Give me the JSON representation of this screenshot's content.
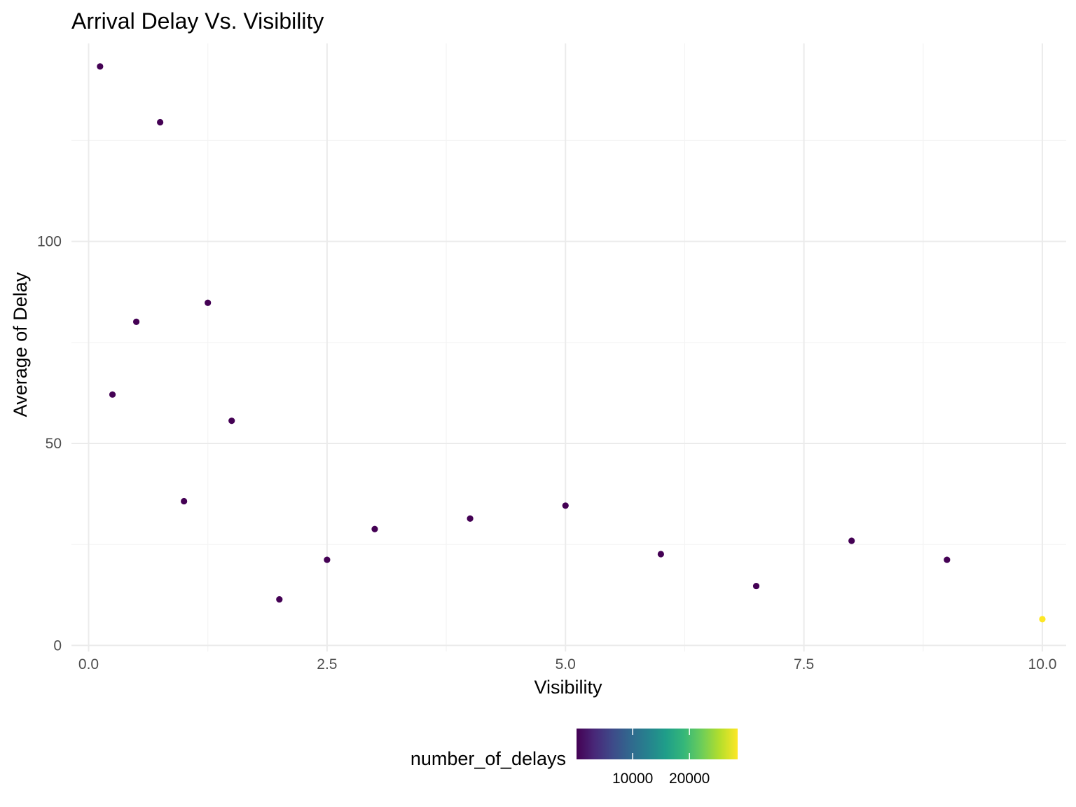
{
  "chart_data": {
    "type": "scatter",
    "title": "Arrival Delay Vs. Visibility",
    "xlabel": "Visibility",
    "ylabel": "Average of Delay",
    "xlim": [
      -0.18,
      10.25
    ],
    "ylim": [
      -1.5,
      149
    ],
    "x_ticks": [
      0.0,
      2.5,
      5.0,
      7.5,
      10.0
    ],
    "x_tick_labels": [
      "0.0",
      "2.5",
      "5.0",
      "7.5",
      "10.0"
    ],
    "y_ticks": [
      0,
      50,
      100
    ],
    "y_tick_labels": [
      "0",
      "50",
      "100"
    ],
    "grid": true,
    "points": [
      {
        "x": 0.12,
        "y": 143.3,
        "count": 100
      },
      {
        "x": 0.25,
        "y": 62.1,
        "count": 100
      },
      {
        "x": 0.5,
        "y": 80.1,
        "count": 100
      },
      {
        "x": 0.75,
        "y": 129.5,
        "count": 100
      },
      {
        "x": 1.0,
        "y": 35.7,
        "count": 100
      },
      {
        "x": 1.25,
        "y": 84.8,
        "count": 100
      },
      {
        "x": 1.5,
        "y": 55.6,
        "count": 100
      },
      {
        "x": 2.0,
        "y": 11.4,
        "count": 100
      },
      {
        "x": 2.5,
        "y": 21.2,
        "count": 100
      },
      {
        "x": 3.0,
        "y": 28.8,
        "count": 100
      },
      {
        "x": 4.0,
        "y": 31.4,
        "count": 100
      },
      {
        "x": 5.0,
        "y": 34.6,
        "count": 100
      },
      {
        "x": 6.0,
        "y": 22.6,
        "count": 100
      },
      {
        "x": 7.0,
        "y": 14.7,
        "count": 100
      },
      {
        "x": 8.0,
        "y": 25.9,
        "count": 100
      },
      {
        "x": 9.0,
        "y": 21.2,
        "count": 100
      },
      {
        "x": 10.0,
        "y": 6.5,
        "count": 28500
      }
    ],
    "legend": {
      "title": "number_of_delays",
      "placement": "bottom",
      "range": [
        100,
        28500
      ],
      "ticks": [
        10000,
        20000
      ],
      "tick_labels": [
        "10000",
        "20000"
      ],
      "colors": [
        "#440154",
        "#482878",
        "#3E4A89",
        "#31688E",
        "#26828E",
        "#1F9E89",
        "#35B779",
        "#6DCD59",
        "#B4DE2C",
        "#FDE725"
      ]
    }
  }
}
